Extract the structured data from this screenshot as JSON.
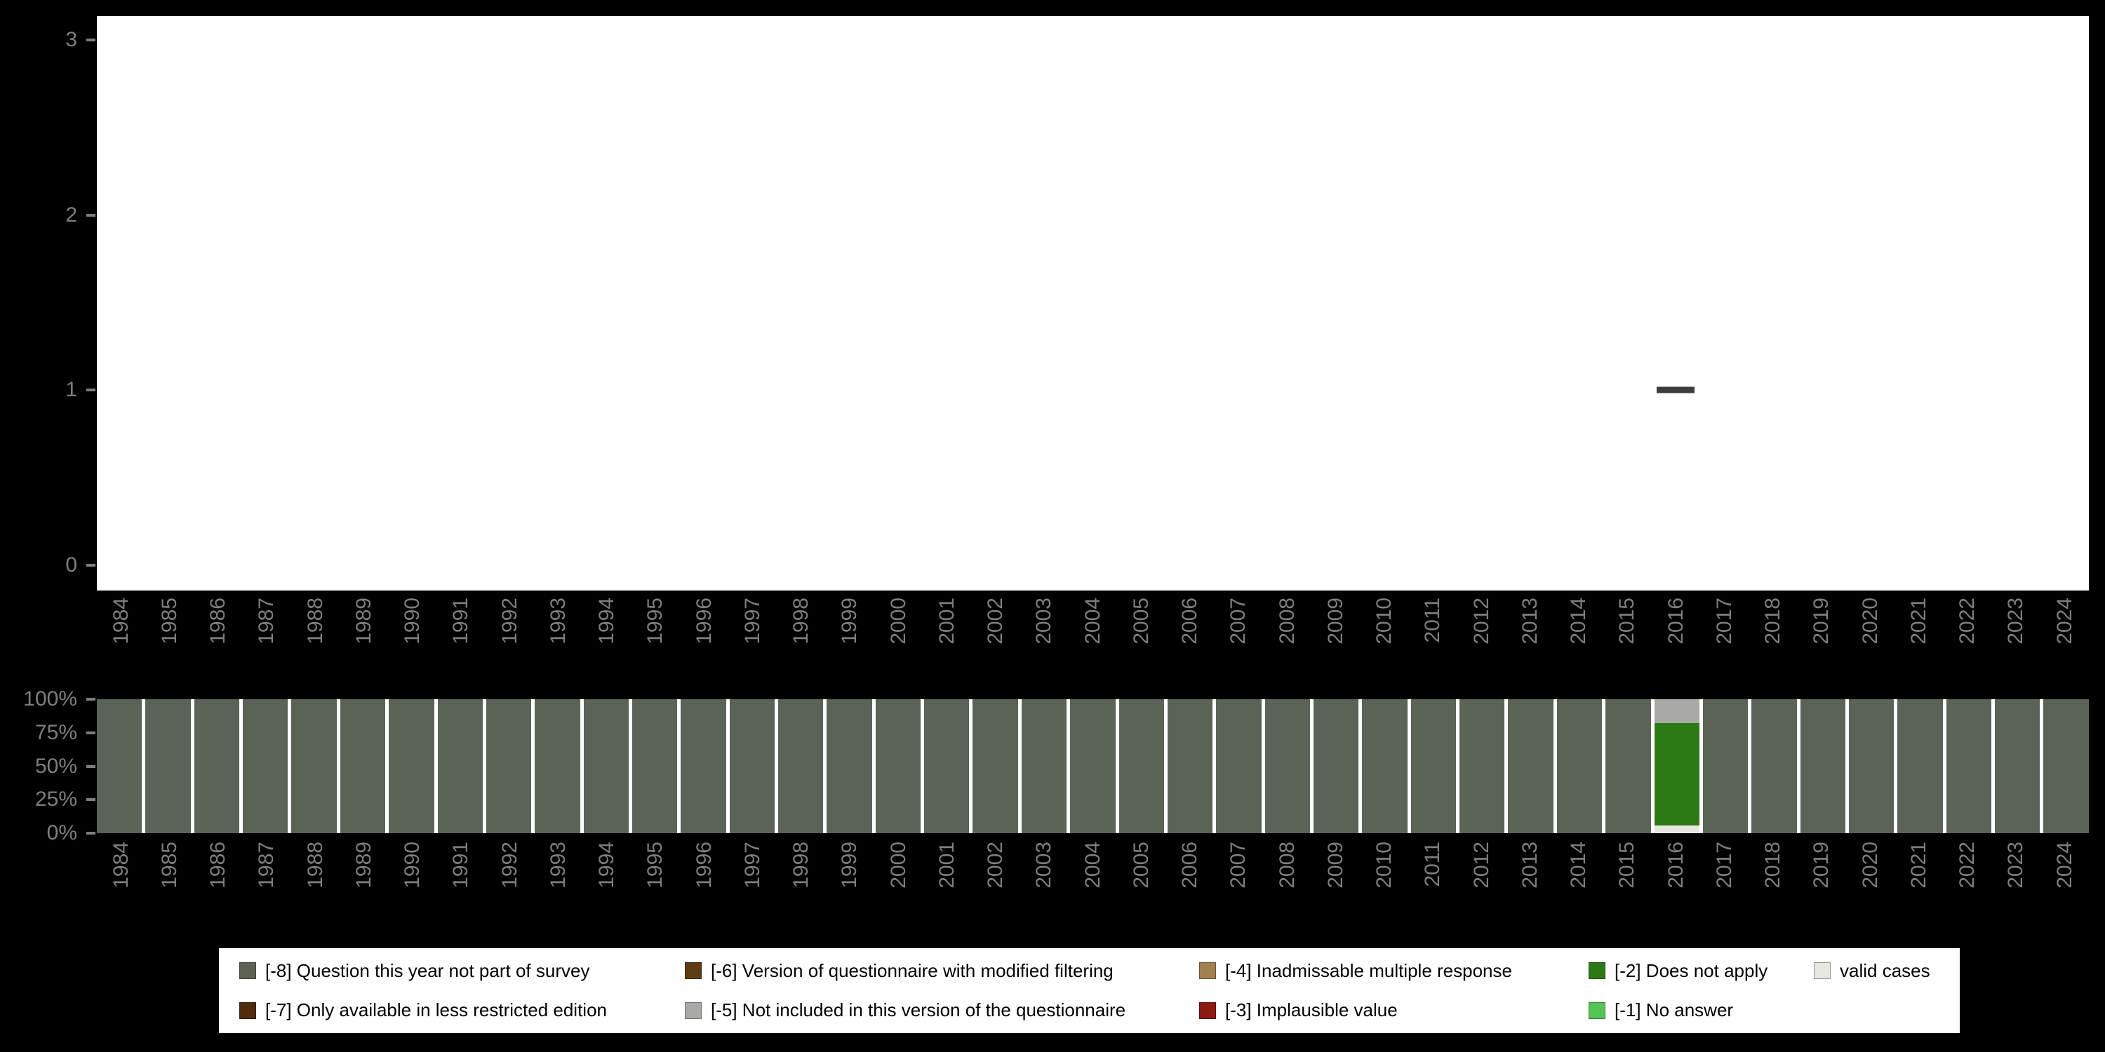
{
  "colors": {
    "page_bg": "#000000",
    "plot_bg": "#ffffff",
    "axis_text": "#7e7e7e",
    "marker": "#3d3d3d",
    "legend_bg": "#ffffff",
    "legend_text": "#000000"
  },
  "chart_data": [
    {
      "name": "values-by-year",
      "type": "bar",
      "marker_style": "dash",
      "title": "",
      "xlabel": "",
      "ylabel": "",
      "ylim": [
        0,
        3
      ],
      "yticks": [
        0,
        1,
        2,
        3
      ],
      "x": [
        "1984",
        "1985",
        "1986",
        "1987",
        "1988",
        "1989",
        "1990",
        "1991",
        "1992",
        "1993",
        "1994",
        "1995",
        "1996",
        "1997",
        "1998",
        "1999",
        "2000",
        "2001",
        "2002",
        "2003",
        "2004",
        "2005",
        "2006",
        "2007",
        "2008",
        "2009",
        "2010",
        "2011",
        "2012",
        "2013",
        "2014",
        "2015",
        "2016",
        "2017",
        "2018",
        "2019",
        "2020",
        "2021",
        "2022",
        "2023",
        "2024"
      ],
      "values": [
        0,
        0,
        0,
        0,
        0,
        0,
        0,
        0,
        0,
        0,
        0,
        0,
        0,
        0,
        0,
        0,
        0,
        0,
        0,
        0,
        0,
        0,
        0,
        0,
        0,
        0,
        0,
        0,
        0,
        0,
        0,
        0,
        1,
        0,
        0,
        0,
        0,
        0,
        0,
        0,
        0
      ]
    },
    {
      "name": "missing-codes-percent-by-year",
      "type": "bar",
      "subtype": "stacked-percent",
      "stack_order": "bottom-to-top",
      "yticks": [
        "0%",
        "25%",
        "50%",
        "75%",
        "100%"
      ],
      "ylim_percent": [
        0,
        100
      ],
      "categories": [
        "1984",
        "1985",
        "1986",
        "1987",
        "1988",
        "1989",
        "1990",
        "1991",
        "1992",
        "1993",
        "1994",
        "1995",
        "1996",
        "1997",
        "1998",
        "1999",
        "2000",
        "2001",
        "2002",
        "2003",
        "2004",
        "2005",
        "2006",
        "2007",
        "2008",
        "2009",
        "2010",
        "2011",
        "2012",
        "2013",
        "2014",
        "2015",
        "2016",
        "2017",
        "2018",
        "2019",
        "2020",
        "2021",
        "2022",
        "2023",
        "2024"
      ],
      "series": [
        {
          "name": "[-8] Question this year not part of survey",
          "color": "#5b6357",
          "values": [
            100,
            100,
            100,
            100,
            100,
            100,
            100,
            100,
            100,
            100,
            100,
            100,
            100,
            100,
            100,
            100,
            100,
            100,
            100,
            100,
            100,
            100,
            100,
            100,
            100,
            100,
            100,
            100,
            100,
            100,
            100,
            100,
            0,
            100,
            100,
            100,
            100,
            100,
            100,
            100,
            100
          ]
        },
        {
          "name": "valid cases",
          "color": "#e7e7e2",
          "values": [
            0,
            0,
            0,
            0,
            0,
            0,
            0,
            0,
            0,
            0,
            0,
            0,
            0,
            0,
            0,
            0,
            0,
            0,
            0,
            0,
            0,
            0,
            0,
            0,
            0,
            0,
            0,
            0,
            0,
            0,
            0,
            0,
            6,
            0,
            0,
            0,
            0,
            0,
            0,
            0,
            0
          ]
        },
        {
          "name": "[-2] Does not apply",
          "color": "#2c7a16",
          "values": [
            0,
            0,
            0,
            0,
            0,
            0,
            0,
            0,
            0,
            0,
            0,
            0,
            0,
            0,
            0,
            0,
            0,
            0,
            0,
            0,
            0,
            0,
            0,
            0,
            0,
            0,
            0,
            0,
            0,
            0,
            0,
            0,
            76,
            0,
            0,
            0,
            0,
            0,
            0,
            0,
            0
          ]
        },
        {
          "name": "[-5] Not included in this version of the questionnaire",
          "color": "#a9a9a5",
          "values": [
            0,
            0,
            0,
            0,
            0,
            0,
            0,
            0,
            0,
            0,
            0,
            0,
            0,
            0,
            0,
            0,
            0,
            0,
            0,
            0,
            0,
            0,
            0,
            0,
            0,
            0,
            0,
            0,
            0,
            0,
            0,
            0,
            18,
            0,
            0,
            0,
            0,
            0,
            0,
            0,
            0
          ]
        }
      ]
    }
  ],
  "legend": {
    "rows": [
      [
        {
          "label": "[-8] Question this year not part of survey",
          "color": "#5b6357"
        },
        {
          "label": "[-6] Version of questionnaire with modified filtering",
          "color": "#5c3d14"
        },
        {
          "label": "[-4] Inadmissable multiple response",
          "color": "#a1814f"
        },
        {
          "label": "[-2] Does not apply",
          "color": "#2c7a16"
        },
        {
          "label": "valid cases",
          "color": "#e7e7e2"
        }
      ],
      [
        {
          "label": "[-7] Only available in less restricted edition",
          "color": "#4e2c0c"
        },
        {
          "label": "[-5] Not included in this version of the questionnaire",
          "color": "#a9a9a5"
        },
        {
          "label": "[-3] Implausible value",
          "color": "#8b1a10"
        },
        {
          "label": "[-1] No answer",
          "color": "#54c452"
        }
      ]
    ]
  }
}
